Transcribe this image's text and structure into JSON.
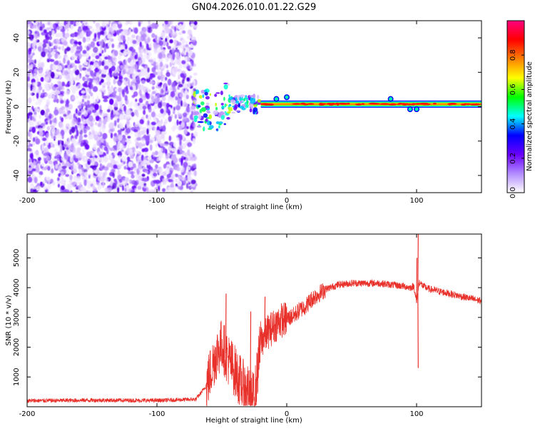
{
  "chart_data": [
    {
      "type": "heatmap",
      "title": "GN04.2026.010.01.22.G29",
      "xlabel": "Height of straight line (km)",
      "ylabel": "Frequency (Hz)",
      "xlim": [
        -200,
        150
      ],
      "ylim": [
        -50,
        50
      ],
      "xticks": [
        -200,
        -100,
        0,
        100
      ],
      "yticks": [
        -40,
        -20,
        0,
        20,
        40
      ],
      "colorbar": {
        "label": "Normalized spectral amplitude",
        "range": [
          0,
          1
        ],
        "ticks": [
          "0.0",
          "0.2",
          "0.4",
          "0.6",
          "0.8"
        ],
        "colors": [
          "#ffffff",
          "#b28cff",
          "#6a00ff",
          "#0000ff",
          "#00ffff",
          "#00ff00",
          "#ffff00",
          "#ff8000",
          "#ff0000",
          "#ff0080"
        ]
      },
      "regions": [
        {
          "name": "noise",
          "x_range": [
            -200,
            -72
          ],
          "freq_range": [
            -50,
            50
          ],
          "amplitude": 0.1
        },
        {
          "name": "transition",
          "x_range": [
            -72,
            -20
          ],
          "freq_range": [
            -12,
            8
          ],
          "amplitude": 0.5
        },
        {
          "name": "tracked",
          "x_range": [
            -20,
            150
          ],
          "center_freq": 1.5,
          "amplitude": 0.9
        }
      ]
    },
    {
      "type": "line",
      "xlabel": "Height of straight line (km)",
      "ylabel": "SNR (10 * v/v)",
      "xlim": [
        -200,
        150
      ],
      "ylim": [
        0,
        5800
      ],
      "xticks": [
        -200,
        -100,
        0,
        100
      ],
      "yticks": [
        1000,
        2000,
        3000,
        4000,
        5000
      ],
      "color": "#e8312b",
      "series": [
        {
          "name": "SNR",
          "x": [
            -200,
            -150,
            -100,
            -70,
            -62,
            -55,
            -50,
            -45,
            -40,
            -35,
            -30,
            -25,
            -22,
            -20,
            -15,
            -10,
            -5,
            0,
            5,
            10,
            15,
            20,
            25,
            30,
            40,
            50,
            60,
            70,
            80,
            90,
            95,
            98,
            100,
            102,
            105,
            110,
            120,
            130,
            140,
            150
          ],
          "y": [
            200,
            220,
            210,
            250,
            700,
            1700,
            2100,
            1600,
            1200,
            800,
            500,
            250,
            1400,
            2200,
            2500,
            2700,
            2900,
            2950,
            3050,
            3250,
            3400,
            3650,
            3800,
            3950,
            4100,
            4150,
            4150,
            4150,
            4100,
            4050,
            4000,
            4050,
            3500,
            4200,
            4050,
            3950,
            3850,
            3750,
            3650,
            3550
          ]
        }
      ],
      "spikes": [
        {
          "x": -47,
          "y": 3800
        },
        {
          "x": -17,
          "y": 3700
        },
        {
          "x": -28,
          "y": 3200
        },
        {
          "x": 100,
          "y": 5000
        },
        {
          "x": 101,
          "y": 5800
        },
        {
          "x": 101,
          "y": 1300
        }
      ]
    }
  ]
}
